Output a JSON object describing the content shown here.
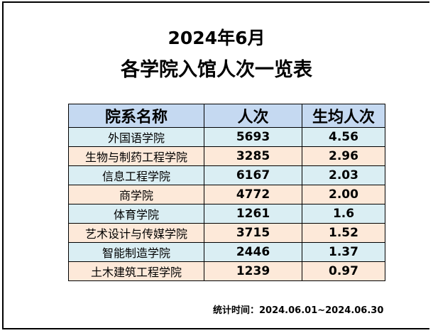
{
  "title_line1": "2024年6月",
  "title_line2": "各学院入馆人次一览表",
  "table": {
    "headers": [
      "院系名称",
      "人次",
      "生均人次"
    ],
    "rows": [
      [
        "外国语学院",
        "5693",
        "4.56"
      ],
      [
        "生物与制药工程学院",
        "3285",
        "2.96"
      ],
      [
        "信息工程学院",
        "6167",
        "2.03"
      ],
      [
        "商学院",
        "4772",
        "2.00"
      ],
      [
        "体育学院",
        "1261",
        "1.6"
      ],
      [
        "艺术设计与传媒学院",
        "3715",
        "1.52"
      ],
      [
        "智能制造学院",
        "2446",
        "1.37"
      ],
      [
        "土木建筑工程学院",
        "1239",
        "0.97"
      ]
    ]
  },
  "footer": "统计时间：2024.06.01~2024.06.30",
  "colors": {
    "header": "#c5d9f1",
    "row_blue": "#daeef3",
    "row_peach": "#fde9d9"
  }
}
